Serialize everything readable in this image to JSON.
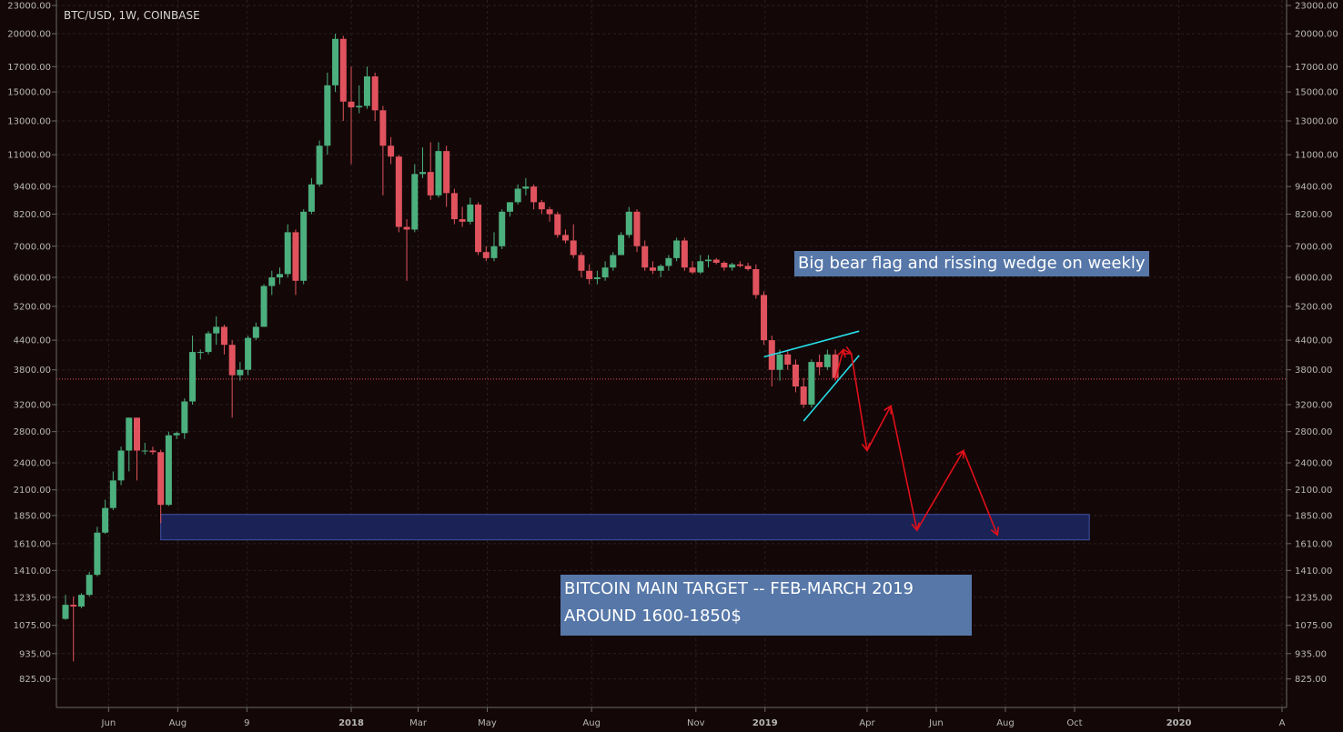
{
  "chart_data": {
    "type": "candlestick",
    "symbol": "BTC/USD, 1W, COINBASE",
    "y_scale": "log",
    "ylim": [
      770,
      23000
    ],
    "y_ticks": [
      23000,
      20000,
      17000,
      15000,
      13000,
      11000,
      9400,
      8200,
      7000,
      6000,
      5200,
      4400,
      3800,
      3200,
      2800,
      2400,
      2100,
      1850,
      1610,
      1410,
      1235,
      1075,
      935,
      825
    ],
    "y_tick_labels": [
      "23000.00",
      "20000.00",
      "17000.00",
      "15000.00",
      "13000.00",
      "11000.00",
      "9400.00",
      "8200.00",
      "7000.00",
      "6000.00",
      "5200.00",
      "4400.00",
      "3800.00",
      "3200.00",
      "2800.00",
      "2400.00",
      "2100.00",
      "1850.00",
      "1610.00",
      "1410.00",
      "1235.00",
      "1075.00",
      "935.00",
      "825.00"
    ],
    "x_ticks": [
      {
        "label": "Jun",
        "date": "2017-06-01",
        "bold": false
      },
      {
        "label": "Aug",
        "date": "2017-08-01",
        "bold": false
      },
      {
        "label": "9",
        "date": "2017-10-01",
        "bold": false
      },
      {
        "label": "2018",
        "date": "2018-01-01",
        "bold": true
      },
      {
        "label": "Mar",
        "date": "2018-03-01",
        "bold": false
      },
      {
        "label": "May",
        "date": "2018-05-01",
        "bold": false
      },
      {
        "label": "Aug",
        "date": "2018-08-01",
        "bold": false
      },
      {
        "label": "Nov",
        "date": "2018-11-01",
        "bold": false
      },
      {
        "label": "2019",
        "date": "2019-01-01",
        "bold": true
      },
      {
        "label": "Apr",
        "date": "2019-04-01",
        "bold": false
      },
      {
        "label": "Jun",
        "date": "2019-06-01",
        "bold": false
      },
      {
        "label": "Aug",
        "date": "2019-08-01",
        "bold": false
      },
      {
        "label": "Oct",
        "date": "2019-10-01",
        "bold": false
      },
      {
        "label": "2020",
        "date": "2020-01-01",
        "bold": true
      },
      {
        "label": "A",
        "date": "2020-04-01",
        "bold": false
      }
    ],
    "candles": [
      {
        "date": "2017-04-24",
        "o": 1110,
        "h": 1250,
        "l": 1105,
        "c": 1190
      },
      {
        "date": "2017-05-01",
        "o": 1190,
        "h": 1240,
        "l": 900,
        "c": 1180
      },
      {
        "date": "2017-05-08",
        "o": 1180,
        "h": 1260,
        "l": 1170,
        "c": 1250
      },
      {
        "date": "2017-05-15",
        "o": 1250,
        "h": 1400,
        "l": 1240,
        "c": 1380
      },
      {
        "date": "2017-05-22",
        "o": 1380,
        "h": 1750,
        "l": 1370,
        "c": 1700
      },
      {
        "date": "2017-05-29",
        "o": 1700,
        "h": 2000,
        "l": 1690,
        "c": 1920
      },
      {
        "date": "2017-06-05",
        "o": 1920,
        "h": 2300,
        "l": 1900,
        "c": 2200
      },
      {
        "date": "2017-06-12",
        "o": 2200,
        "h": 2600,
        "l": 2150,
        "c": 2550
      },
      {
        "date": "2017-06-19",
        "o": 2550,
        "h": 3000,
        "l": 2300,
        "c": 3000
      },
      {
        "date": "2017-06-26",
        "o": 3000,
        "h": 3000,
        "l": 2200,
        "c": 2550
      },
      {
        "date": "2017-07-03",
        "o": 2550,
        "h": 2650,
        "l": 2500,
        "c": 2550
      },
      {
        "date": "2017-07-10",
        "o": 2550,
        "h": 2600,
        "l": 2500,
        "c": 2530
      },
      {
        "date": "2017-07-17",
        "o": 2530,
        "h": 2560,
        "l": 1780,
        "c": 1950
      },
      {
        "date": "2017-07-24",
        "o": 1950,
        "h": 2800,
        "l": 1940,
        "c": 2750
      },
      {
        "date": "2017-07-31",
        "o": 2750,
        "h": 2800,
        "l": 2700,
        "c": 2780
      },
      {
        "date": "2017-08-07",
        "o": 2780,
        "h": 3300,
        "l": 2700,
        "c": 3250
      },
      {
        "date": "2017-08-14",
        "o": 3250,
        "h": 4500,
        "l": 3200,
        "c": 4150
      },
      {
        "date": "2017-08-21",
        "o": 4150,
        "h": 4200,
        "l": 4000,
        "c": 4150
      },
      {
        "date": "2017-08-28",
        "o": 4150,
        "h": 4600,
        "l": 4100,
        "c": 4550
      },
      {
        "date": "2017-09-04",
        "o": 4550,
        "h": 4950,
        "l": 4300,
        "c": 4700
      },
      {
        "date": "2017-09-11",
        "o": 4700,
        "h": 4750,
        "l": 4100,
        "c": 4300
      },
      {
        "date": "2017-09-18",
        "o": 4300,
        "h": 4400,
        "l": 3000,
        "c": 3700
      },
      {
        "date": "2017-09-25",
        "o": 3700,
        "h": 3950,
        "l": 3600,
        "c": 3800
      },
      {
        "date": "2017-10-02",
        "o": 3800,
        "h": 4500,
        "l": 3700,
        "c": 4450
      },
      {
        "date": "2017-10-09",
        "o": 4450,
        "h": 4800,
        "l": 4400,
        "c": 4700
      },
      {
        "date": "2017-10-16",
        "o": 4700,
        "h": 5800,
        "l": 4700,
        "c": 5750
      },
      {
        "date": "2017-10-23",
        "o": 5750,
        "h": 6200,
        "l": 5500,
        "c": 6000
      },
      {
        "date": "2017-10-30",
        "o": 6000,
        "h": 6300,
        "l": 5800,
        "c": 6100
      },
      {
        "date": "2017-11-06",
        "o": 6100,
        "h": 7800,
        "l": 6000,
        "c": 7500
      },
      {
        "date": "2017-11-13",
        "o": 7500,
        "h": 7600,
        "l": 5500,
        "c": 5900
      },
      {
        "date": "2017-11-20",
        "o": 5900,
        "h": 8400,
        "l": 5800,
        "c": 8300
      },
      {
        "date": "2017-11-27",
        "o": 8300,
        "h": 9800,
        "l": 8200,
        "c": 9500
      },
      {
        "date": "2017-12-04",
        "o": 9500,
        "h": 11800,
        "l": 9400,
        "c": 11500
      },
      {
        "date": "2017-12-11",
        "o": 11500,
        "h": 16500,
        "l": 11000,
        "c": 15500
      },
      {
        "date": "2017-12-18",
        "o": 15500,
        "h": 20000,
        "l": 15000,
        "c": 19500
      },
      {
        "date": "2017-12-25",
        "o": 19500,
        "h": 19800,
        "l": 13000,
        "c": 14300
      },
      {
        "date": "2018-01-01",
        "o": 14300,
        "h": 17000,
        "l": 10500,
        "c": 13900
      },
      {
        "date": "2018-01-08",
        "o": 13900,
        "h": 15500,
        "l": 13500,
        "c": 14000
      },
      {
        "date": "2018-01-15",
        "o": 14000,
        "h": 17000,
        "l": 13800,
        "c": 16200
      },
      {
        "date": "2018-01-22",
        "o": 16200,
        "h": 16500,
        "l": 13000,
        "c": 13700
      },
      {
        "date": "2018-01-29",
        "o": 13700,
        "h": 14000,
        "l": 9000,
        "c": 11500
      },
      {
        "date": "2018-02-05",
        "o": 11500,
        "h": 12000,
        "l": 10500,
        "c": 10900
      },
      {
        "date": "2018-02-12",
        "o": 10900,
        "h": 11000,
        "l": 7500,
        "c": 7700
      },
      {
        "date": "2018-02-19",
        "o": 7700,
        "h": 8000,
        "l": 5900,
        "c": 7600
      },
      {
        "date": "2018-02-26",
        "o": 7600,
        "h": 10500,
        "l": 7500,
        "c": 10000
      },
      {
        "date": "2018-03-05",
        "o": 10000,
        "h": 11400,
        "l": 9800,
        "c": 10100
      },
      {
        "date": "2018-03-12",
        "o": 10100,
        "h": 11700,
        "l": 8800,
        "c": 9000
      },
      {
        "date": "2018-03-19",
        "o": 9000,
        "h": 11700,
        "l": 8900,
        "c": 11200
      },
      {
        "date": "2018-03-26",
        "o": 11200,
        "h": 11500,
        "l": 8500,
        "c": 9100
      },
      {
        "date": "2018-04-02",
        "o": 9100,
        "h": 9300,
        "l": 7800,
        "c": 8000
      },
      {
        "date": "2018-04-09",
        "o": 8000,
        "h": 8500,
        "l": 7700,
        "c": 7900
      },
      {
        "date": "2018-04-16",
        "o": 7900,
        "h": 8900,
        "l": 7800,
        "c": 8600
      },
      {
        "date": "2018-04-23",
        "o": 8600,
        "h": 8700,
        "l": 6700,
        "c": 6800
      },
      {
        "date": "2018-04-30",
        "o": 6800,
        "h": 7000,
        "l": 6500,
        "c": 6600
      },
      {
        "date": "2018-05-07",
        "o": 6600,
        "h": 7500,
        "l": 6500,
        "c": 7000
      },
      {
        "date": "2018-05-14",
        "o": 7000,
        "h": 8400,
        "l": 6900,
        "c": 8300
      },
      {
        "date": "2018-05-21",
        "o": 8300,
        "h": 8700,
        "l": 8100,
        "c": 8700
      },
      {
        "date": "2018-05-28",
        "o": 8700,
        "h": 9500,
        "l": 8600,
        "c": 9300
      },
      {
        "date": "2018-06-04",
        "o": 9300,
        "h": 9800,
        "l": 9000,
        "c": 9400
      },
      {
        "date": "2018-06-11",
        "o": 9400,
        "h": 9500,
        "l": 8400,
        "c": 8700
      },
      {
        "date": "2018-06-18",
        "o": 8700,
        "h": 8800,
        "l": 8200,
        "c": 8400
      },
      {
        "date": "2018-06-25",
        "o": 8400,
        "h": 8500,
        "l": 7900,
        "c": 8200
      },
      {
        "date": "2018-07-02",
        "o": 8200,
        "h": 8300,
        "l": 7300,
        "c": 7400
      },
      {
        "date": "2018-07-09",
        "o": 7400,
        "h": 7600,
        "l": 7100,
        "c": 7200
      },
      {
        "date": "2018-07-16",
        "o": 7200,
        "h": 7800,
        "l": 6600,
        "c": 6700
      },
      {
        "date": "2018-07-23",
        "o": 6700,
        "h": 6800,
        "l": 6000,
        "c": 6200
      },
      {
        "date": "2018-07-30",
        "o": 6200,
        "h": 6400,
        "l": 5800,
        "c": 5950
      },
      {
        "date": "2018-08-06",
        "o": 5950,
        "h": 6200,
        "l": 5800,
        "c": 6000
      },
      {
        "date": "2018-08-13",
        "o": 6000,
        "h": 6500,
        "l": 5900,
        "c": 6300
      },
      {
        "date": "2018-08-20",
        "o": 6300,
        "h": 6800,
        "l": 6200,
        "c": 6700
      },
      {
        "date": "2018-08-27",
        "o": 6700,
        "h": 7500,
        "l": 6700,
        "c": 7400
      },
      {
        "date": "2018-09-03",
        "o": 7400,
        "h": 8500,
        "l": 7300,
        "c": 8300
      },
      {
        "date": "2018-09-10",
        "o": 8300,
        "h": 8400,
        "l": 6800,
        "c": 7000
      },
      {
        "date": "2018-09-17",
        "o": 7000,
        "h": 7200,
        "l": 6200,
        "c": 6300
      },
      {
        "date": "2018-09-24",
        "o": 6300,
        "h": 6500,
        "l": 6100,
        "c": 6200
      },
      {
        "date": "2018-10-01",
        "o": 6200,
        "h": 6400,
        "l": 6000,
        "c": 6350
      },
      {
        "date": "2018-10-08",
        "o": 6350,
        "h": 6700,
        "l": 6200,
        "c": 6600
      },
      {
        "date": "2018-10-15",
        "o": 6600,
        "h": 7300,
        "l": 6500,
        "c": 7200
      },
      {
        "date": "2018-10-22",
        "o": 7200,
        "h": 7300,
        "l": 6200,
        "c": 6300
      },
      {
        "date": "2018-10-29",
        "o": 6300,
        "h": 6500,
        "l": 6100,
        "c": 6150
      },
      {
        "date": "2018-11-05",
        "o": 6150,
        "h": 6700,
        "l": 6100,
        "c": 6500
      },
      {
        "date": "2018-11-12",
        "o": 6500,
        "h": 6700,
        "l": 6300,
        "c": 6550
      },
      {
        "date": "2018-11-19",
        "o": 6550,
        "h": 6600,
        "l": 6400,
        "c": 6450
      },
      {
        "date": "2018-11-26",
        "o": 6450,
        "h": 6500,
        "l": 6200,
        "c": 6300
      },
      {
        "date": "2018-12-03",
        "o": 6300,
        "h": 6450,
        "l": 6200,
        "c": 6400
      },
      {
        "date": "2018-12-10",
        "o": 6400,
        "h": 6500,
        "l": 6300,
        "c": 6350
      },
      {
        "date": "2018-12-17",
        "o": 6350,
        "h": 6450,
        "l": 6200,
        "c": 6250
      },
      {
        "date": "2018-12-24",
        "o": 6250,
        "h": 6400,
        "l": 5400,
        "c": 5500
      },
      {
        "date": "2018-12-31",
        "o": 5500,
        "h": 5600,
        "l": 4300,
        "c": 4400
      },
      {
        "date": "2019-01-07",
        "o": 4400,
        "h": 4500,
        "l": 3500,
        "c": 3800
      },
      {
        "date": "2019-01-14",
        "o": 3800,
        "h": 4200,
        "l": 3600,
        "c": 4100
      },
      {
        "date": "2019-01-21",
        "o": 4100,
        "h": 4200,
        "l": 3800,
        "c": 3900
      },
      {
        "date": "2019-01-28",
        "o": 3900,
        "h": 4000,
        "l": 3400,
        "c": 3500
      },
      {
        "date": "2019-02-04",
        "o": 3500,
        "h": 3650,
        "l": 3150,
        "c": 3200
      },
      {
        "date": "2019-02-11",
        "o": 3200,
        "h": 4000,
        "l": 3150,
        "c": 3950
      },
      {
        "date": "2019-02-18",
        "o": 3950,
        "h": 4100,
        "l": 3700,
        "c": 3850
      },
      {
        "date": "2019-02-25",
        "o": 3850,
        "h": 4200,
        "l": 3800,
        "c": 4100
      },
      {
        "date": "2019-03-04",
        "o": 4100,
        "h": 4200,
        "l": 3600,
        "c": 3650
      }
    ],
    "price_line": 3630,
    "support_zone": {
      "from": "2017-07-17",
      "to": "2019-10-14",
      "low": 1640,
      "high": 1860
    },
    "wedge_lines": [
      {
        "from": {
          "date": "2018-12-31",
          "price": 4050
        },
        "to": {
          "date": "2019-03-25",
          "price": 4600
        }
      },
      {
        "from": {
          "date": "2019-02-04",
          "price": 2950
        },
        "to": {
          "date": "2019-03-25",
          "price": 4080
        }
      }
    ],
    "projection_path": [
      {
        "date": "2019-03-04",
        "price": 3620
      },
      {
        "date": "2019-03-11",
        "price": 4200
      },
      {
        "date": "2019-03-18",
        "price": 4120
      },
      {
        "date": "2019-04-01",
        "price": 2550
      },
      {
        "date": "2019-04-22",
        "price": 3180
      },
      {
        "date": "2019-05-15",
        "price": 1720
      },
      {
        "date": "2019-06-25",
        "price": 2550
      },
      {
        "date": "2019-07-25",
        "price": 1680
      }
    ],
    "colors": {
      "background": "#140707",
      "up": "#4caf7e",
      "down": "#e0535e",
      "grid": "#2a2020",
      "axis_text": "#b7b7b7",
      "wedge": "#26e0ea",
      "projection": "#e0101a",
      "zone": "#1b2356",
      "zone_border": "#3f52a8",
      "price_line": "#e0535e",
      "note_bg": "#5677a8"
    }
  },
  "annotations": {
    "note1": "Big bear flag and rissing wedge on weekly",
    "note2_line1": "BITCOIN MAIN TARGET -- FEB-MARCH 2019",
    "note2_line2": "AROUND 1600-1850$"
  }
}
